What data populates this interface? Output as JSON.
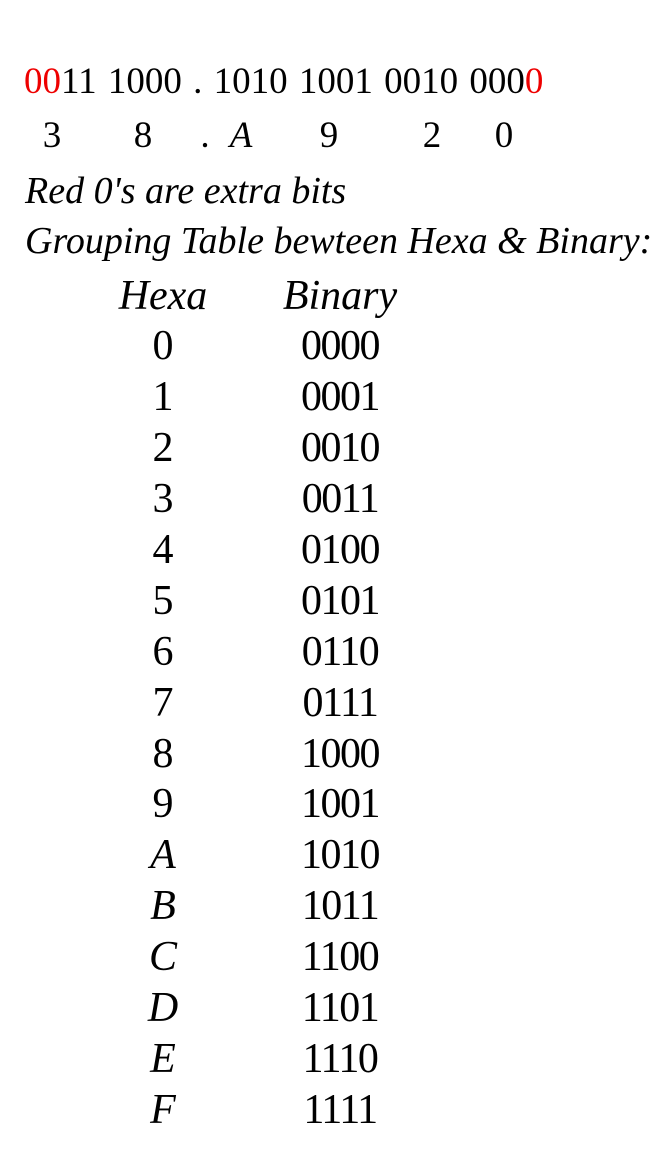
{
  "binary_line": {
    "red_prefix": "00",
    "middle": "11 1000 . 1010 1001 0010 000",
    "red_suffix": "0"
  },
  "hex_line": {
    "digits": [
      "3",
      "8",
      ".",
      "A",
      "9",
      "2",
      "0"
    ]
  },
  "note": "Red 0's are extra bits",
  "table_title": "Grouping Table bewteen Hexa & Binary:",
  "table": {
    "headers": {
      "hex": "Hexa",
      "binary": "Binary"
    },
    "rows": [
      {
        "hex": "0",
        "binary": "0000"
      },
      {
        "hex": "1",
        "binary": "0001"
      },
      {
        "hex": "2",
        "binary": "0010"
      },
      {
        "hex": "3",
        "binary": "0011"
      },
      {
        "hex": "4",
        "binary": "0100"
      },
      {
        "hex": "5",
        "binary": "0101"
      },
      {
        "hex": "6",
        "binary": "0110"
      },
      {
        "hex": "7",
        "binary": "0111"
      },
      {
        "hex": "8",
        "binary": "1000"
      },
      {
        "hex": "9",
        "binary": "1001"
      },
      {
        "hex": "A",
        "binary": "1010"
      },
      {
        "hex": "B",
        "binary": "1011"
      },
      {
        "hex": "C",
        "binary": "1100"
      },
      {
        "hex": "D",
        "binary": "1101"
      },
      {
        "hex": "E",
        "binary": "1110"
      },
      {
        "hex": "F",
        "binary": "1111"
      }
    ]
  },
  "colors": {
    "extra_bits_red": "#ee0000",
    "text": "#000000",
    "background": "#ffffff"
  }
}
